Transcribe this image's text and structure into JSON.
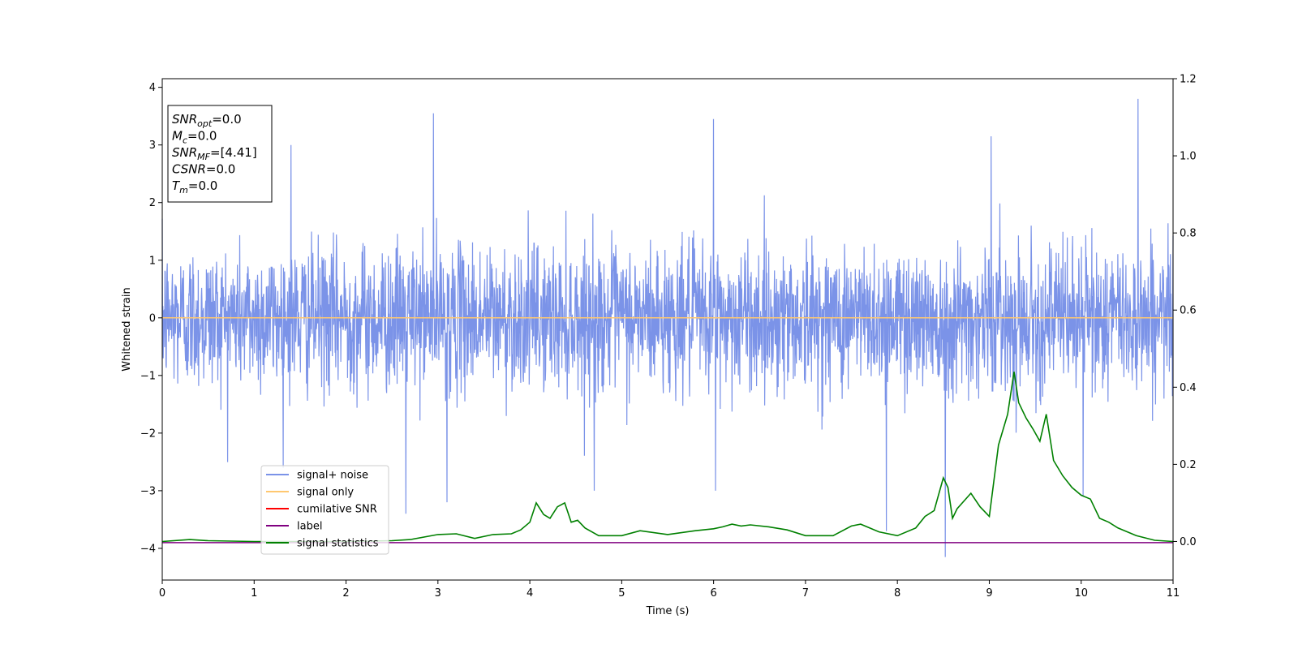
{
  "chart_data": {
    "type": "line",
    "xlabel": "Time (s)",
    "ylabel": "Whitened strain",
    "xlim": [
      0,
      11
    ],
    "ylim": [
      -4.55,
      4.15
    ],
    "y2lim": [
      -0.1,
      1.2
    ],
    "x_ticks": [
      "0",
      "1",
      "2",
      "3",
      "4",
      "5",
      "6",
      "7",
      "8",
      "9",
      "10",
      "11"
    ],
    "y_ticks": [
      "4",
      "3",
      "2",
      "1",
      "0",
      "−1",
      "−2",
      "−3",
      "−4"
    ],
    "y2_ticks": [
      "1.2",
      "1.0",
      "0.8",
      "0.6",
      "0.4",
      "0.2",
      "0.0"
    ],
    "grid": false,
    "legend_position": "lower-left",
    "legend": [
      {
        "name": "signal+ noise",
        "color": "#7b93e8"
      },
      {
        "name": "signal only",
        "color": "#ffc870"
      },
      {
        "name": "cumilative SNR",
        "color": "#ff0000"
      },
      {
        "name": "label",
        "color": "#800080"
      },
      {
        "name": "signal statistics",
        "color": "#008000"
      }
    ],
    "info_box": [
      {
        "base": "SNR",
        "sub": "opt",
        "value": "=0.0"
      },
      {
        "base": "M",
        "sub": "c",
        "value": "=0.0"
      },
      {
        "base": "SNR",
        "sub": "MF",
        "value": "=[4.41]"
      },
      {
        "base": "CSNR",
        "sub": "",
        "value": "=0.0"
      },
      {
        "base": "T",
        "sub": "m",
        "value": "=0.0"
      }
    ],
    "noise_series": {
      "name": "signal+ noise",
      "color": "#7b93e8",
      "typical_envelope": [
        -1.8,
        2.0
      ],
      "notable_points": [
        {
          "x": 1.4,
          "y": 3.0
        },
        {
          "x": 2.95,
          "y": 3.55
        },
        {
          "x": 3.1,
          "y": -3.2
        },
        {
          "x": 4.7,
          "y": -3.0
        },
        {
          "x": 6.0,
          "y": 3.45
        },
        {
          "x": 6.02,
          "y": -3.0
        },
        {
          "x": 7.88,
          "y": -3.7
        },
        {
          "x": 8.52,
          "y": -4.15
        },
        {
          "x": 9.02,
          "y": 3.15
        },
        {
          "x": 10.62,
          "y": 3.8
        },
        {
          "x": 10.02,
          "y": -3.1
        },
        {
          "x": 2.65,
          "y": -3.4
        }
      ]
    },
    "signal_only": {
      "name": "signal only",
      "color": "#ffc870",
      "y": 0
    },
    "label_series": {
      "name": "label",
      "color": "#800080",
      "y": -3.9
    },
    "signal_statistics": {
      "name": "signal statistics",
      "color": "#008000",
      "axis": "right",
      "x": [
        0,
        0.3,
        0.5,
        1.0,
        2.0,
        2.5,
        2.7,
        3.0,
        3.2,
        3.4,
        3.6,
        3.8,
        3.9,
        4.0,
        4.07,
        4.15,
        4.22,
        4.3,
        4.38,
        4.45,
        4.52,
        4.6,
        4.75,
        5.0,
        5.2,
        5.5,
        5.8,
        6.0,
        6.1,
        6.2,
        6.3,
        6.4,
        6.6,
        6.8,
        7.0,
        7.3,
        7.5,
        7.6,
        7.8,
        8.0,
        8.2,
        8.3,
        8.4,
        8.5,
        8.55,
        8.6,
        8.65,
        8.8,
        8.9,
        9.0,
        9.1,
        9.2,
        9.27,
        9.32,
        9.4,
        9.48,
        9.55,
        9.62,
        9.7,
        9.8,
        9.9,
        10.0,
        10.1,
        10.2,
        10.3,
        10.4,
        10.6,
        10.8,
        11.0
      ],
      "y": [
        0.0,
        0.005,
        0.002,
        0.0,
        0.0,
        0.002,
        0.005,
        0.018,
        0.02,
        0.008,
        0.018,
        0.02,
        0.03,
        0.05,
        0.1,
        0.07,
        0.06,
        0.09,
        0.1,
        0.05,
        0.055,
        0.035,
        0.015,
        0.015,
        0.028,
        0.018,
        0.028,
        0.033,
        0.038,
        0.045,
        0.04,
        0.043,
        0.038,
        0.03,
        0.015,
        0.015,
        0.04,
        0.045,
        0.025,
        0.015,
        0.035,
        0.065,
        0.08,
        0.165,
        0.14,
        0.06,
        0.085,
        0.125,
        0.09,
        0.065,
        0.25,
        0.33,
        0.44,
        0.36,
        0.32,
        0.29,
        0.26,
        0.33,
        0.21,
        0.17,
        0.14,
        0.12,
        0.11,
        0.06,
        0.05,
        0.035,
        0.015,
        0.003,
        0.0
      ]
    }
  }
}
